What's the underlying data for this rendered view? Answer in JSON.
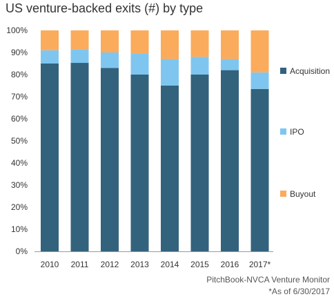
{
  "chart_data": {
    "type": "bar",
    "stacked": true,
    "title": "US venture-backed exits (#) by type",
    "categories": [
      "2010",
      "2011",
      "2012",
      "2013",
      "2014",
      "2015",
      "2016",
      "2017*"
    ],
    "series": [
      {
        "name": "Acquisition",
        "color": "#33627d",
        "values": [
          85,
          85.3,
          83,
          80,
          75,
          80,
          82,
          73.5
        ]
      },
      {
        "name": "IPO",
        "color": "#7ec6f0",
        "values": [
          6,
          6.2,
          7,
          9.5,
          12,
          8,
          5,
          7.5
        ]
      },
      {
        "name": "Buyout",
        "color": "#fbab5c",
        "values": [
          9,
          8.5,
          10,
          10.5,
          13,
          12,
          13,
          19
        ]
      }
    ],
    "yticks": [
      "0%",
      "10%",
      "20%",
      "30%",
      "40%",
      "50%",
      "60%",
      "70%",
      "80%",
      "90%",
      "100%"
    ],
    "ylim": [
      0,
      100
    ],
    "grid": false,
    "legend": "right"
  },
  "source": {
    "line1": "PitchBook-NVCA Venture Monitor",
    "line2": "*As of 6/30/2017"
  }
}
